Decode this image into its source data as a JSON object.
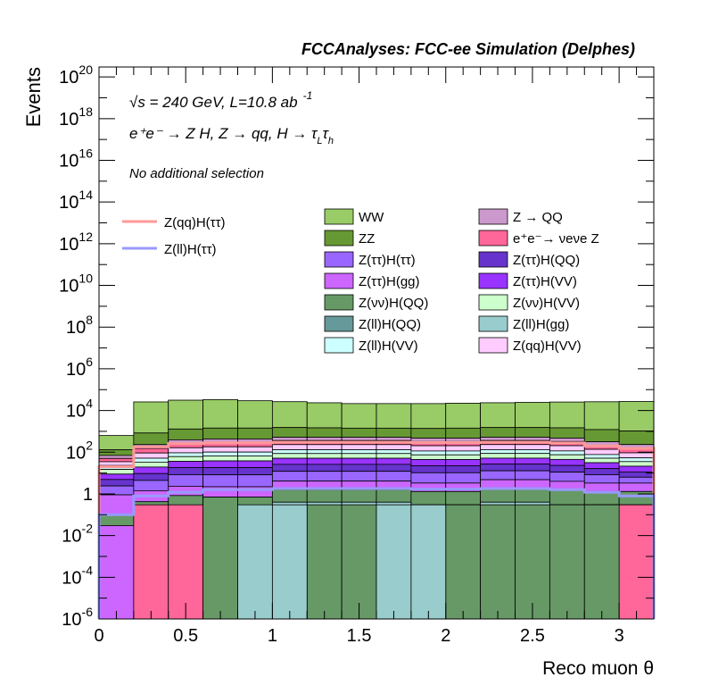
{
  "chart_data": {
    "type": "area",
    "title": "FCCAnalyses: FCC-ee Simulation (Delphes)",
    "xlabel": "Reco muon θ",
    "ylabel": "Events",
    "log_y": true,
    "xlim": [
      0,
      3.2
    ],
    "ylim": [
      1e-06,
      3e+20
    ],
    "x_ticks": [
      {
        "v": 0,
        "label": "0"
      },
      {
        "v": 0.5,
        "label": "0.5"
      },
      {
        "v": 1,
        "label": "1"
      },
      {
        "v": 1.5,
        "label": "1.5"
      },
      {
        "v": 2,
        "label": "2"
      },
      {
        "v": 2.5,
        "label": "2.5"
      },
      {
        "v": 3,
        "label": "3"
      }
    ],
    "y_ticks": [
      {
        "v": 1e-06,
        "base": "10",
        "exp": "-6"
      },
      {
        "v": 0.0001,
        "base": "10",
        "exp": "-4"
      },
      {
        "v": 0.01,
        "base": "10",
        "exp": "-2"
      },
      {
        "v": 1,
        "base": "1",
        "exp": ""
      },
      {
        "v": 100.0,
        "base": "10",
        "exp": "2"
      },
      {
        "v": 10000.0,
        "base": "10",
        "exp": "4"
      },
      {
        "v": 1000000.0,
        "base": "10",
        "exp": "6"
      },
      {
        "v": 100000000.0,
        "base": "10",
        "exp": "8"
      },
      {
        "v": 10000000000.0,
        "base": "10",
        "exp": "10"
      },
      {
        "v": 1000000000000.0,
        "base": "10",
        "exp": "12"
      },
      {
        "v": 100000000000000.0,
        "base": "10",
        "exp": "14"
      },
      {
        "v": 1e+16,
        "base": "10",
        "exp": "16"
      },
      {
        "v": 1e+18,
        "base": "10",
        "exp": "18"
      },
      {
        "v": 1e+20,
        "base": "10",
        "exp": "20"
      }
    ],
    "annotations": {
      "energy": "√s = 240 GeV, L=10.8 ab",
      "energy_exp": "-1",
      "process": "e⁺e⁻ → Z H, Z → qq, H → τ",
      "process_sub1": "L",
      "process_mid": "τ",
      "process_sub2": "h",
      "selection": "No additional selection"
    },
    "bin_edges": [
      0,
      0.2,
      0.4,
      0.6,
      0.8,
      1.0,
      1.2,
      1.4,
      1.6,
      1.8,
      2.0,
      2.2,
      2.4,
      2.6,
      2.8,
      3.0,
      3.2
    ],
    "stack_totals": [
      500,
      25000,
      30000,
      32000,
      28000,
      25000,
      22000,
      20000,
      20000,
      20000,
      21000,
      22000,
      23000,
      24000,
      25000,
      26000,
      0
    ],
    "stack_bands": [
      {
        "name": "Z(ll)H(gg)",
        "color": "#99cccc",
        "values": [
          0.02,
          0.02,
          0.03,
          0.1,
          0.1,
          0.4,
          0.4,
          0.4,
          0.4,
          0.3,
          0.3,
          0.4,
          0.4,
          0.3,
          0.3,
          0.3
        ]
      },
      {
        "name": "Z(νν)H(QQ)",
        "color": "#669966",
        "values": [
          0.08,
          0.4,
          0.8,
          0.6,
          0.6,
          1.2,
          1.2,
          1.2,
          1.2,
          1.0,
          1.0,
          1.4,
          1.4,
          1.2,
          1.0,
          1.0
        ]
      },
      {
        "name": "Z(ττ)H(gg)",
        "color": "#cc66ff",
        "values": [
          0.8,
          1.0,
          1.5,
          1.5,
          1.5,
          2.5,
          2.5,
          2.5,
          2.5,
          2.0,
          2.0,
          3.0,
          3.0,
          2.5,
          2.0,
          2.0
        ]
      },
      {
        "name": "Z(ττ)H(ττ)",
        "color": "#9966ff",
        "values": [
          1.5,
          3.0,
          6.0,
          6.0,
          6.0,
          8.0,
          8.0,
          8.0,
          8.0,
          7.0,
          7.0,
          8.0,
          8.0,
          7.0,
          5.0,
          3.0
        ]
      },
      {
        "name": "Z(ττ)H(QQ)",
        "color": "#6633cc",
        "values": [
          2.5,
          5.0,
          10,
          10,
          10,
          14,
          14,
          14,
          14,
          12,
          12,
          14,
          14,
          12,
          8,
          5
        ]
      },
      {
        "name": "Z(ττ)H(VV)",
        "color": "#9933ff",
        "values": [
          4,
          10,
          18,
          20,
          20,
          25,
          25,
          25,
          25,
          22,
          22,
          25,
          25,
          22,
          15,
          10
        ]
      },
      {
        "name": "Z(νν)H(VV)",
        "color": "#ccffcc",
        "values": [
          6,
          14,
          25,
          28,
          28,
          35,
          35,
          35,
          35,
          30,
          30,
          35,
          35,
          30,
          20,
          14
        ]
      },
      {
        "name": "Z(ll)H(VV)",
        "color": "#ccffff",
        "values": [
          8,
          18,
          32,
          35,
          35,
          45,
          45,
          45,
          45,
          40,
          40,
          45,
          45,
          40,
          26,
          18
        ]
      },
      {
        "name": "Z(qq)H(VV)",
        "color": "#ffccff",
        "values": [
          12,
          40,
          70,
          80,
          80,
          100,
          100,
          100,
          100,
          90,
          90,
          100,
          100,
          90,
          60,
          40
        ]
      },
      {
        "name": "e⁺e⁻→ νeνe Z",
        "color": "#ff6699",
        "values": [
          15,
          60,
          100,
          110,
          110,
          130,
          130,
          130,
          130,
          120,
          120,
          130,
          130,
          120,
          80,
          60
        ]
      },
      {
        "name": "Z → QQ",
        "color": "#cc99cc",
        "values": [
          20,
          80,
          130,
          140,
          140,
          160,
          160,
          160,
          160,
          150,
          150,
          160,
          160,
          150,
          100,
          80
        ]
      },
      {
        "name": "ZZ",
        "color": "#669933",
        "values": [
          60,
          600,
          900,
          1000,
          1000,
          1000,
          950,
          900,
          900,
          900,
          950,
          1000,
          1000,
          1000,
          900,
          800
        ]
      },
      {
        "name": "WW",
        "color": "#99cc66",
        "values": [
          500,
          25000,
          30000,
          32000,
          28000,
          25000,
          22000,
          20000,
          20000,
          20000,
          21000,
          22000,
          23000,
          24000,
          25000,
          26000
        ]
      }
    ],
    "front_fills": [
      {
        "name": "Z(ττ)H(gg)",
        "color": "#cc66ff",
        "values": [
          0.03,
          0,
          0,
          0,
          0,
          0,
          0,
          0,
          0,
          0,
          0,
          0,
          0,
          0,
          0,
          0
        ]
      },
      {
        "name": "e⁺e⁻→ νeνe Z",
        "color": "#ff6699",
        "values": [
          0,
          0.3,
          0.3,
          0,
          0,
          0,
          0,
          0,
          0,
          0,
          0,
          0,
          0,
          0,
          0.3,
          0.3
        ]
      },
      {
        "name": "Z(νν)H(QQ)",
        "color": "#669966",
        "values": [
          0,
          0,
          0,
          0.7,
          0.01,
          0.01,
          0.3,
          0.3,
          0,
          0,
          0.3,
          0.3,
          0.3,
          0.3,
          0.3,
          0
        ]
      },
      {
        "name": "Z(ll)H(gg)",
        "color": "#99cccc",
        "values": [
          0,
          0,
          0,
          0,
          0.3,
          0.3,
          0,
          0,
          0.3,
          0.3,
          0,
          0,
          0,
          0,
          0,
          0
        ]
      }
    ],
    "stack_extra": [
      {
        "name": "Z(νν)H(QQ)",
        "color": "#669966",
        "values": [
          0,
          0,
          0,
          0,
          0,
          0,
          0,
          0.01,
          0.01,
          0,
          0,
          0.0001,
          0.0001,
          0,
          0,
          0
        ]
      },
      {
        "name": "Z(ll)H(gg)",
        "color": "#99cccc",
        "values": [
          0,
          0,
          0,
          0,
          0,
          0,
          0,
          0,
          0,
          0.0001,
          0.0001,
          0,
          0,
          0,
          0,
          0
        ]
      }
    ],
    "line_series": [
      {
        "name": "Z(qq)H(ττ)",
        "color": "#ff9999",
        "values": [
          20,
          180,
          260,
          280,
          280,
          300,
          300,
          300,
          300,
          290,
          290,
          300,
          300,
          280,
          200,
          150,
          0
        ]
      },
      {
        "name": "Z(ll)H(ττ)",
        "color": "#9999ff",
        "values": [
          0.1,
          0.8,
          1.2,
          1.6,
          1.6,
          1.8,
          1.8,
          1.8,
          1.8,
          1.7,
          1.7,
          1.8,
          1.8,
          1.6,
          1.2,
          0.8,
          0
        ]
      }
    ],
    "legend_lines": [
      {
        "name": "Z(qq)H(ττ)",
        "color": "#ff9999"
      },
      {
        "name": "Z(ll)H(ττ)",
        "color": "#9999ff"
      }
    ],
    "legend_boxes": [
      {
        "name": "WW",
        "color": "#99cc66"
      },
      {
        "name": "Z → QQ",
        "color": "#cc99cc"
      },
      {
        "name": "ZZ",
        "color": "#669933"
      },
      {
        "name": "e⁺e⁻→ νeνe Z",
        "color": "#ff6699"
      },
      {
        "name": "Z(ττ)H(ττ)",
        "color": "#9966ff"
      },
      {
        "name": "Z(ττ)H(QQ)",
        "color": "#6633cc"
      },
      {
        "name": "Z(ττ)H(gg)",
        "color": "#cc66ff"
      },
      {
        "name": "Z(ττ)H(VV)",
        "color": "#9933ff"
      },
      {
        "name": "Z(νν)H(QQ)",
        "color": "#669966"
      },
      {
        "name": "Z(νν)H(VV)",
        "color": "#ccffcc"
      },
      {
        "name": "Z(ll)H(QQ)",
        "color": "#669999"
      },
      {
        "name": "Z(ll)H(gg)",
        "color": "#99cccc"
      },
      {
        "name": "Z(ll)H(VV)",
        "color": "#ccffff"
      },
      {
        "name": "Z(qq)H(VV)",
        "color": "#ffccff"
      }
    ]
  }
}
